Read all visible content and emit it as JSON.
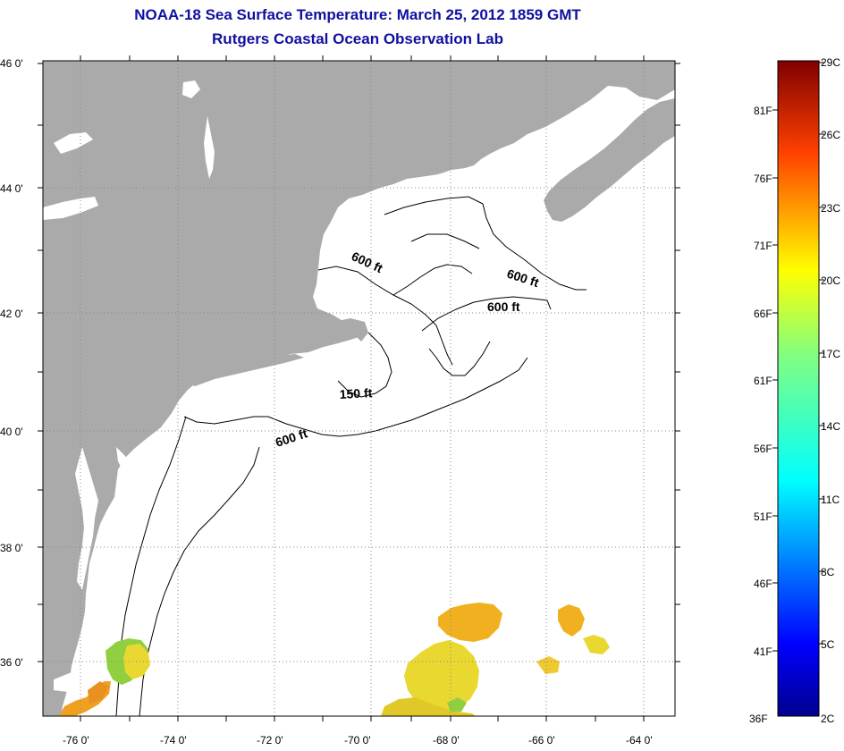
{
  "header": {
    "title": "NOAA-18 Sea Surface Temperature:  March 25, 2012 1859 GMT",
    "subtitle": "Rutgers Coastal Ocean Observation Lab"
  },
  "axes": {
    "lat_labels": [
      "46 0'",
      "44 0'",
      "42 0'",
      "40 0'",
      "38 0'",
      "36 0'"
    ],
    "lon_labels": [
      "-76 0'",
      "-74 0'",
      "-72 0'",
      "-70 0'",
      "-68 0'",
      "-66 0'",
      "-64 0'"
    ]
  },
  "contours": {
    "c1": "600 ft",
    "c2": "600 ft",
    "c3": "600 ft",
    "c4": "150 ft",
    "c5": "600 ft"
  },
  "colorbar": {
    "celsius": [
      "29C",
      "26C",
      "23C",
      "20C",
      "17C",
      "14C",
      "11C",
      "8C",
      "5C",
      "2C"
    ],
    "fahrenheit": [
      "81F",
      "76F",
      "71F",
      "66F",
      "61F",
      "56F",
      "51F",
      "46F",
      "41F",
      "36F"
    ]
  },
  "colors": {
    "land": "#aaaaaa",
    "ocean": "#ffffff",
    "title": "#1010a0",
    "sst_warm": "#f0a020",
    "sst_mid": "#e8d830",
    "sst_cool": "#90d040"
  }
}
